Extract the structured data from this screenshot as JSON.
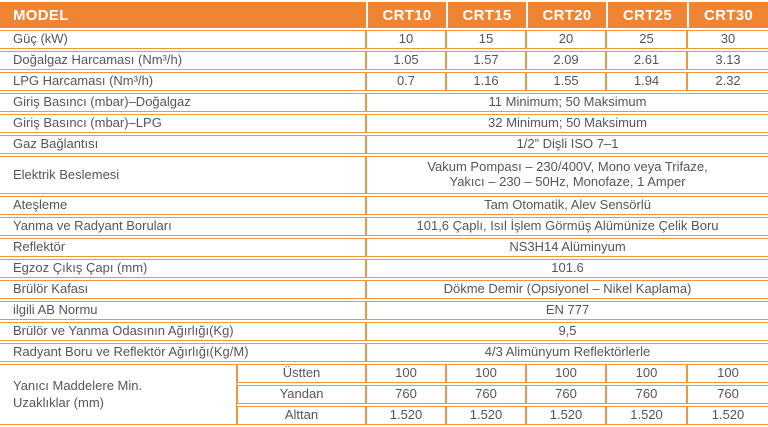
{
  "colors": {
    "header_bg": "#EF8532",
    "border": "#F09540",
    "text": "#55565A",
    "header_text": "#FFFFFF"
  },
  "table": {
    "header": {
      "label": "MODEL",
      "models": [
        "CRT10",
        "CRT15",
        "CRT20",
        "CRT25",
        "CRT30"
      ]
    },
    "rows": [
      {
        "label": "Güç (kW)",
        "values": [
          "10",
          "15",
          "20",
          "25",
          "30"
        ]
      },
      {
        "label": "Doğalgaz Harcaması (Nm³/h)",
        "values": [
          "1.05",
          "1.57",
          "2.09",
          "2.61",
          "3.13"
        ]
      },
      {
        "label": "LPG Harcaması (Nm³/h)",
        "values": [
          "0.7",
          "1.16",
          "1.55",
          "1.94",
          "2.32"
        ]
      },
      {
        "label": "Giriş Basıncı (mbar)–Doğalgaz",
        "value": "11 Minimum; 50 Maksimum"
      },
      {
        "label": "Giriş Basıncı (mbar)–LPG",
        "value": "32 Minimum; 50 Maksimum"
      },
      {
        "label": "Gaz Bağlantısı",
        "value": "1/2” Dişli ISO 7–1"
      },
      {
        "label": "Elektrik Beslemesi",
        "value": "Vakum Pompası – 230/400V, Mono veya Trifaze,\nYakıcı – 230 – 50Hz, Monofaze, 1 Amper",
        "tall": true
      },
      {
        "label": "Ateşleme",
        "value": "Tam Otomatik, Alev Sensörlü"
      },
      {
        "label": "Yanma ve Radyant Boruları",
        "value": "101,6 Çaplı, Isıl İşlem Görmüş Alümünize Çelik Boru"
      },
      {
        "label": "Reflektör",
        "value": "NS3H14 Alüminyum"
      },
      {
        "label": "Egzoz Çıkış Çapı (mm)",
        "value": "101.6"
      },
      {
        "label": "Brülör Kafası",
        "value": "Dökme Demir (Opsiyonel – Nikel Kaplama)"
      },
      {
        "label": "ilgili AB Normu",
        "value": "EN 777"
      },
      {
        "label": "Brülör ve Yanma Odasının Ağırlığı(Kg)",
        "value": "9,5"
      },
      {
        "label": "Radyant Boru ve Reflektör Ağırlığı(Kg/M)",
        "value": "4/3 Alimünyum Reflektörlerle"
      }
    ],
    "group": {
      "label": "Yanıcı Maddelere Min.\nUzaklıklar (mm)",
      "subrows": [
        {
          "label": "Üstten",
          "values": [
            "100",
            "100",
            "100",
            "100",
            "100"
          ]
        },
        {
          "label": "Yandan",
          "values": [
            "760",
            "760",
            "760",
            "760",
            "760"
          ]
        },
        {
          "label": "Alttan",
          "values": [
            "1.520",
            "1.520",
            "1.520",
            "1.520",
            "1.520"
          ]
        }
      ]
    }
  }
}
